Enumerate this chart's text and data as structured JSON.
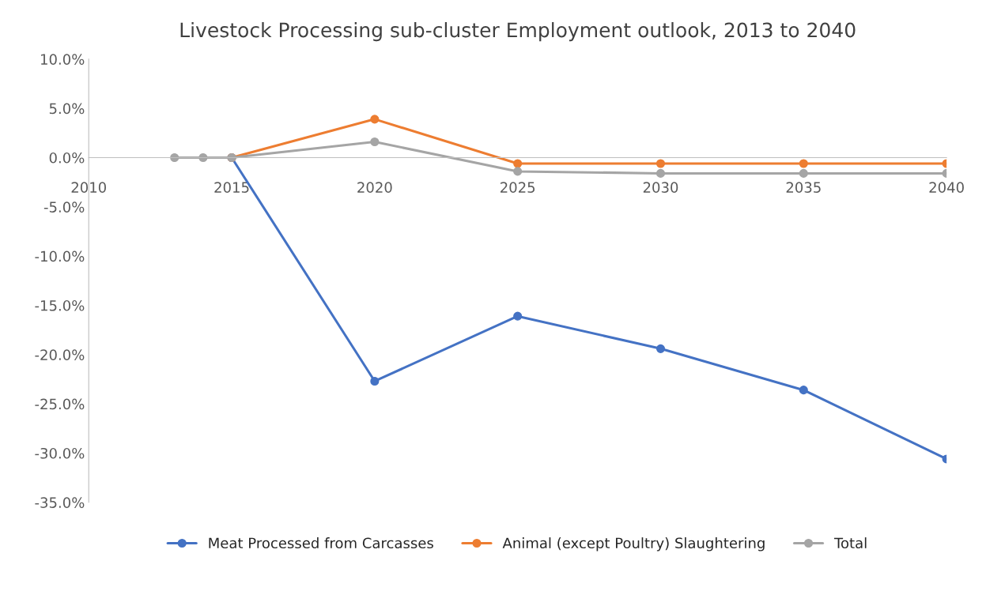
{
  "chart_data": {
    "type": "line",
    "title": "Livestock Processing sub-cluster Employment outlook, 2013 to 2040",
    "xlim": [
      2010,
      2040
    ],
    "xticks": [
      2010,
      2015,
      2020,
      2025,
      2030,
      2035,
      2040
    ],
    "ylim": [
      -35,
      10
    ],
    "yticks": [
      {
        "value": -35,
        "label": "-35.0%"
      },
      {
        "value": -30,
        "label": "-30.0%"
      },
      {
        "value": -25,
        "label": "-25.0%"
      },
      {
        "value": -20,
        "label": "-20.0%"
      },
      {
        "value": -15,
        "label": "-15.0%"
      },
      {
        "value": -10,
        "label": "-10.0%"
      },
      {
        "value": -5,
        "label": "-5.0%"
      },
      {
        "value": 0,
        "label": "0.0%"
      },
      {
        "value": 5,
        "label": "5.0%"
      },
      {
        "value": 10,
        "label": "10.0%"
      }
    ],
    "grid": false,
    "legend": "bottom",
    "marker": "circle",
    "line_style": "solid",
    "series": [
      {
        "name": "Meat Processed from Carcasses",
        "color": "#4472c4",
        "x": [
          2015,
          2020,
          2025,
          2030,
          2035,
          2040
        ],
        "values": [
          0,
          -22.7,
          -16.1,
          -19.4,
          -23.6,
          -30.6
        ]
      },
      {
        "name": "Animal (except Poultry) Slaughtering",
        "color": "#ed7d31",
        "x": [
          2015,
          2020,
          2025,
          2030,
          2035,
          2040
        ],
        "values": [
          0,
          3.9,
          -0.6,
          -0.6,
          -0.6,
          -0.6
        ]
      },
      {
        "name": "Total",
        "color": "#a5a5a5",
        "x": [
          2013,
          2014,
          2015,
          2020,
          2025,
          2030,
          2035,
          2040
        ],
        "values": [
          0,
          0,
          0,
          1.6,
          -1.4,
          -1.6,
          -1.6,
          -1.6
        ]
      }
    ]
  }
}
